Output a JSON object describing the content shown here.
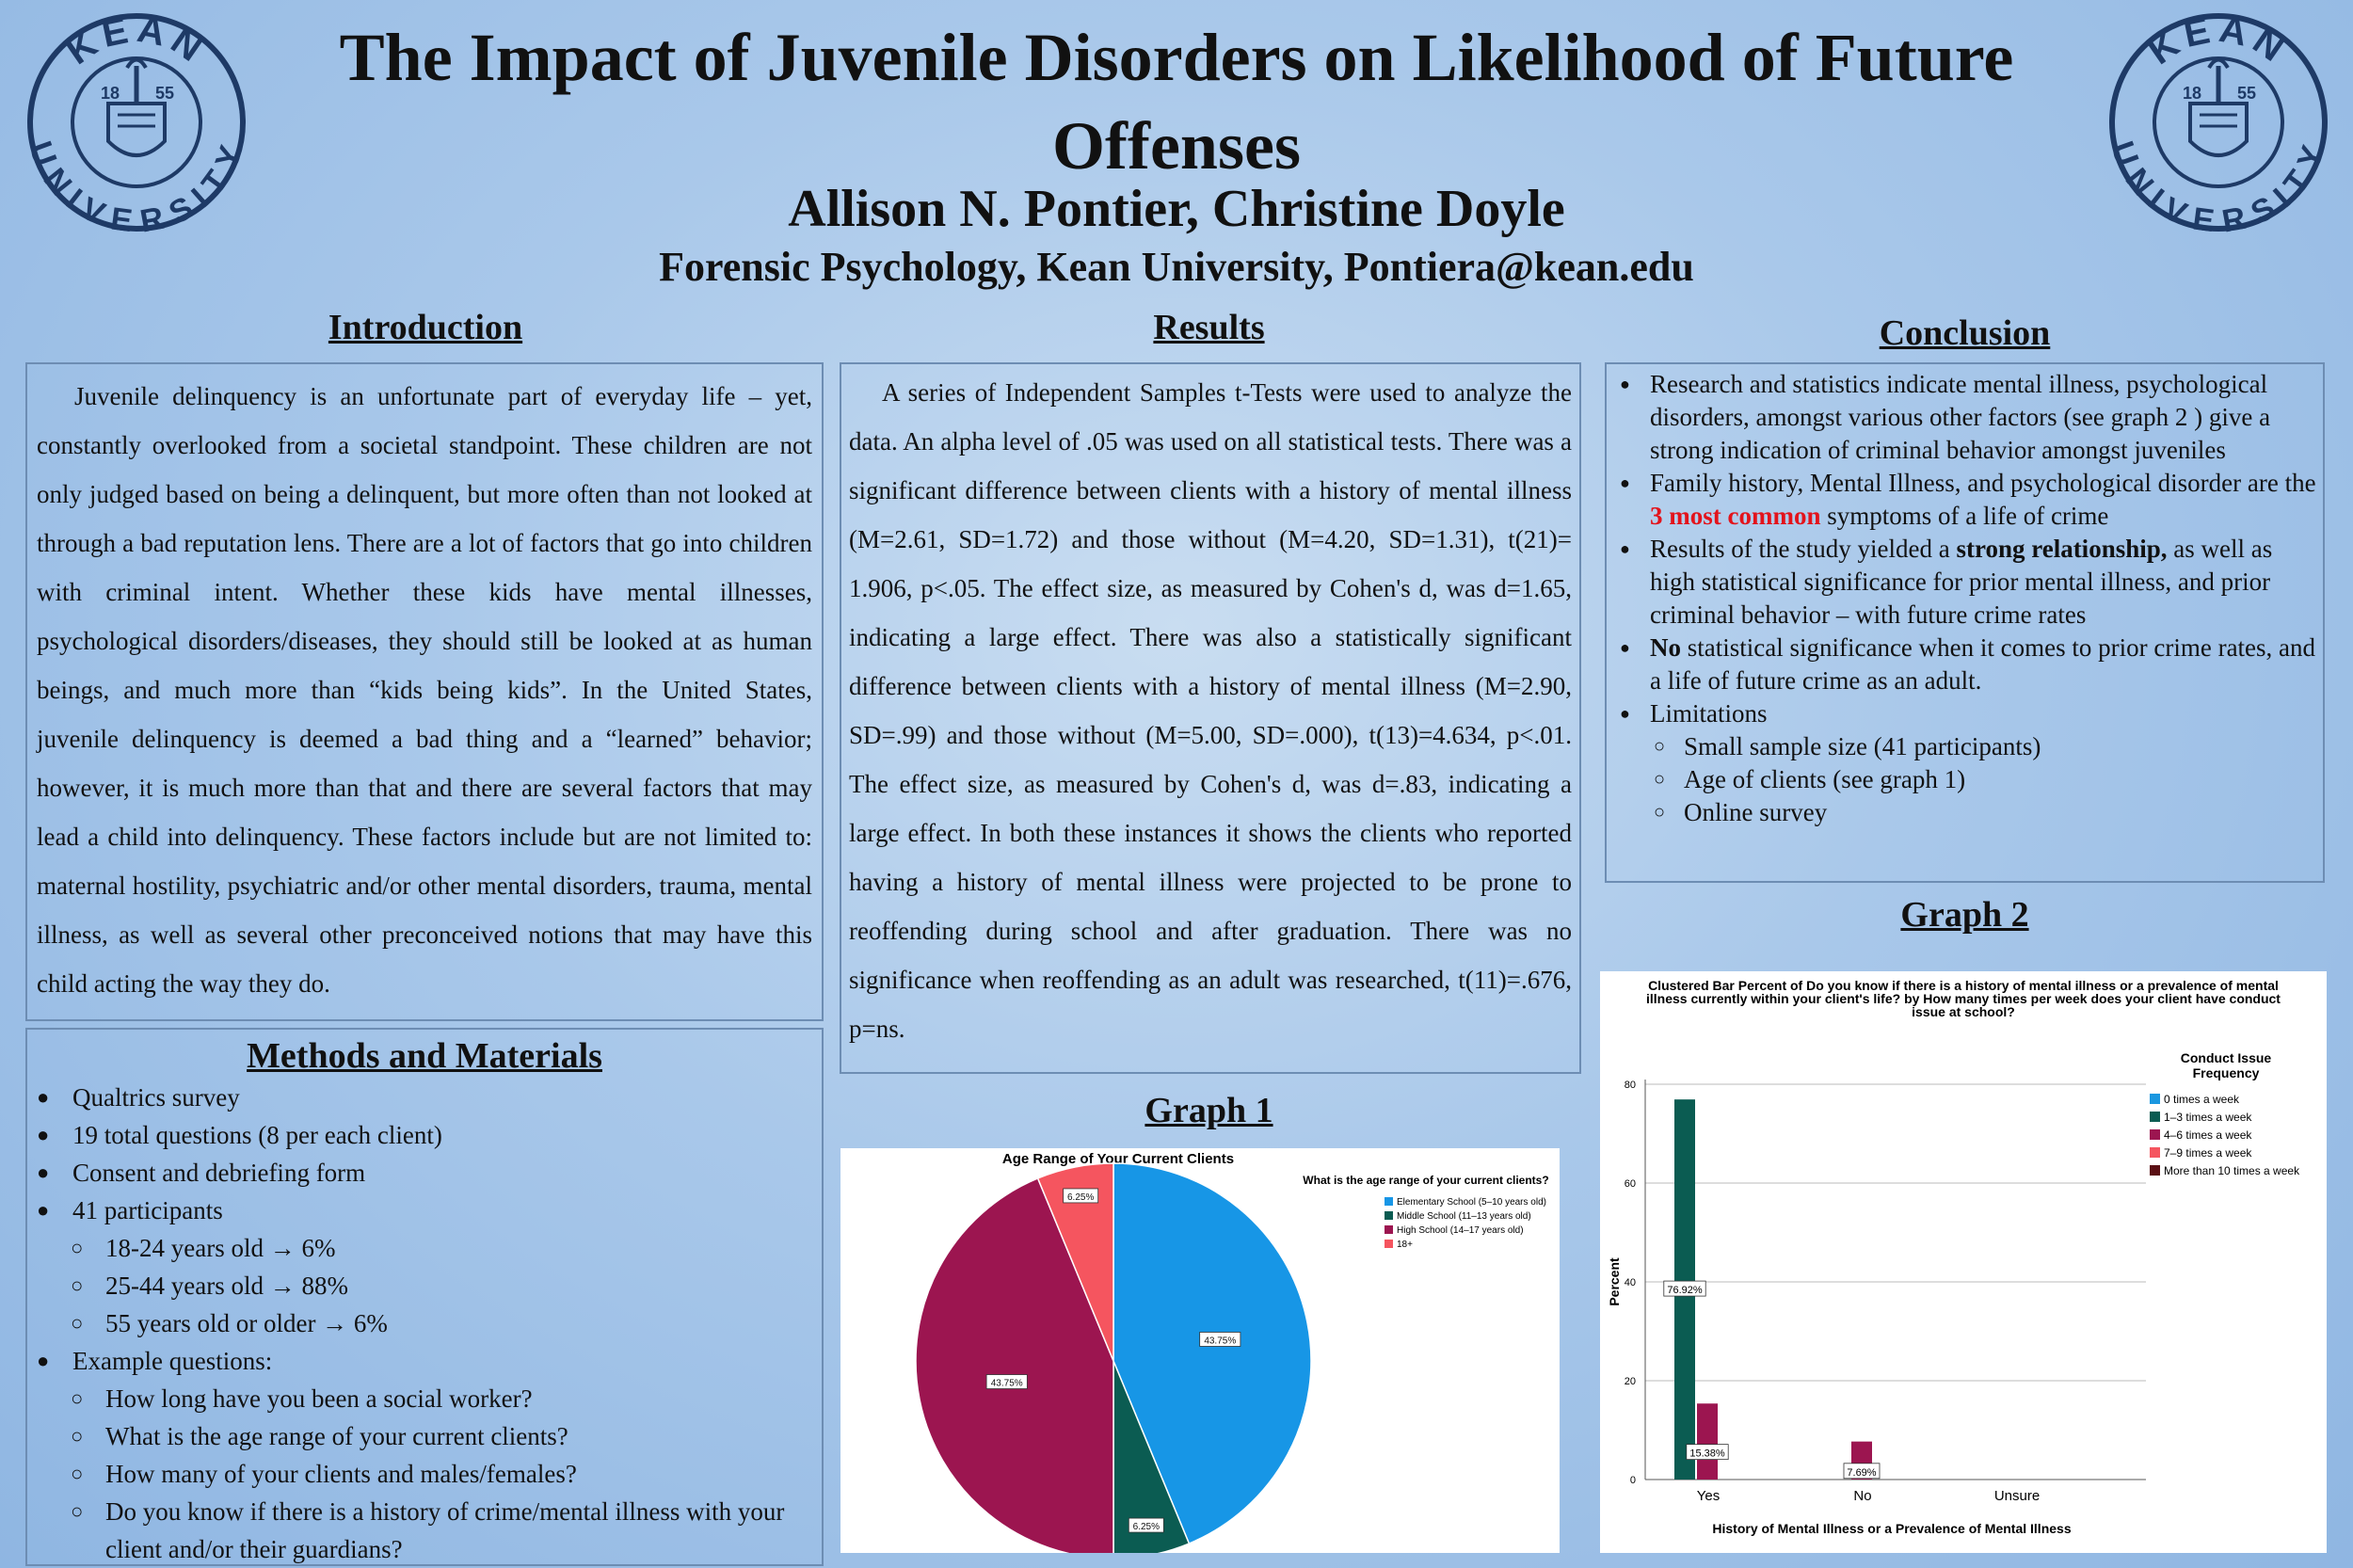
{
  "logo": {
    "top_text": "KEAN",
    "bottom_text": "UNIVERSITY",
    "year_left": "18",
    "year_right": "55",
    "icon": "kean-university-seal-icon",
    "color": "#1e3a66"
  },
  "header": {
    "title_line1": "The Impact of Juvenile Disorders on Likelihood of Future",
    "title_line2": "Offenses",
    "authors": "Allison N. Pontier, Christine Doyle",
    "affiliation": "Forensic Psychology, Kean University, Pontiera@kean.edu"
  },
  "introduction": {
    "heading": "Introduction",
    "text": "Juvenile delinquency is an unfortunate part of everyday life – yet, constantly overlooked from a societal standpoint. These children are not only judged based on being a delinquent, but more often than not looked at through a bad reputation lens. There are a lot of factors that go into children with criminal intent. Whether these kids have mental illnesses, psychological disorders/diseases, they should still be looked at as human beings, and much more than “kids being kids”. In the United States, juvenile delinquency is deemed a bad thing and a “learned” behavior; however, it is much more than that and there are several factors that may lead a child into delinquency. These factors include but are not limited to: maternal hostility, psychiatric and/or other mental disorders, trauma, mental illness, as well as several other preconceived notions that may have this child acting the way they do."
  },
  "methods": {
    "heading": "Methods and Materials",
    "items": [
      {
        "level": 1,
        "text": "Qualtrics survey"
      },
      {
        "level": 1,
        "text": "19 total questions (8 per each client)"
      },
      {
        "level": 1,
        "text": "Consent and debriefing form"
      },
      {
        "level": 1,
        "text": "41 participants"
      },
      {
        "level": 2,
        "text": "18-24 years old → 6%"
      },
      {
        "level": 2,
        "text": "25-44 years old → 88%"
      },
      {
        "level": 2,
        "text": "55 years old or older → 6%"
      },
      {
        "level": 1,
        "text": "Example questions:"
      },
      {
        "level": 2,
        "text": "How long have you been a social worker?"
      },
      {
        "level": 2,
        "text": "What is the age range of your current clients?"
      },
      {
        "level": 2,
        "text": "How many of your clients and males/females?"
      },
      {
        "level": 2,
        "text": "Do you know if there is a history of crime/mental illness with your client and/or their guardians?"
      }
    ]
  },
  "results": {
    "heading": "Results",
    "text": "A series of Independent Samples t-Tests were used to analyze the data. An alpha level of .05 was used on all statistical tests. There was a significant difference between clients with a history of mental illness (M=2.61, SD=1.72) and those without (M=4.20, SD=1.31), t(21)= 1.906, p<.05. The effect size, as measured by Cohen's d, was d=1.65, indicating a large effect. There was also a statistically significant difference between clients with a history of mental illness (M=2.90, SD=.99) and those without (M=5.00, SD=.000), t(13)=4.634, p<.01. The effect size, as measured by Cohen's d, was d=.83, indicating a large effect. In both these instances it shows the clients who reported having a history of mental illness were projected to be prone to reoffending during school and after graduation. There was no significance when reoffending as an adult was researched, t(11)=.676, p=ns."
  },
  "conclusion": {
    "heading": "Conclusion",
    "b1": "Research and statistics indicate mental illness, psychological disorders, amongst various other factors (see graph 2  ) give a strong indication of criminal behavior amongst juveniles",
    "b2_pre": "Family history, Mental Illness, and psychological disorder are the ",
    "b2_red": "3 most common",
    "b2_post": " symptoms of a life of crime",
    "b3_pre": "Results of the study yielded a ",
    "b3_bold": "strong relationship,",
    "b3_post": " as well as high statistical significance for prior mental illness, and prior criminal behavior – with future crime rates",
    "b4_bold": "No",
    "b4_post": " statistical significance when it comes to prior crime rates, and a life of future crime as an adult.",
    "b5": "Limitations",
    "sub": [
      "Small sample size (41 participants)",
      "Age of clients (see graph 1)",
      "Online survey"
    ]
  },
  "graph1": {
    "heading": "Graph 1",
    "chart_data": {
      "type": "pie",
      "title": "Age Range of Your Current Clients",
      "legend_title": "What is the age range of your current clients?",
      "legend_position": "right",
      "slices": [
        {
          "label": "Elementary School (5–10 years old)",
          "value": 43.75,
          "display": "43.75%",
          "color": "#1796e6"
        },
        {
          "label": "Middle School (11–13 years old)",
          "value": 6.25,
          "display": "6.25%",
          "color": "#0b5c52"
        },
        {
          "label": "High School (14–17 years old)",
          "value": 43.75,
          "display": "43.75%",
          "color": "#9c1550"
        },
        {
          "label": "18+",
          "value": 6.25,
          "display": "6.25%",
          "color": "#f5555f"
        }
      ]
    }
  },
  "graph2": {
    "heading": "Graph 2",
    "chart_data": {
      "type": "bar",
      "title_lines": [
        "Clustered Bar Percent of Do you know if there is a history of mental illness or a prevalence of mental",
        "illness currently within your client's life? by How many times per week does your client have conduct",
        "issue at school?"
      ],
      "xlabel": "History of Mental Illness or a Prevalence of Mental Illness",
      "ylabel": "Percent",
      "ylim": [
        0,
        80
      ],
      "yticks": [
        0,
        20,
        40,
        60,
        80
      ],
      "categories": [
        "Yes",
        "No",
        "Unsure"
      ],
      "legend_title_lines": [
        "Conduct Issue",
        "Frequency"
      ],
      "legend_position": "top-right",
      "series": [
        {
          "name": "0 times a week",
          "color": "#1a97e0",
          "values": [
            0,
            0,
            0
          ]
        },
        {
          "name": "1–3 times a week",
          "color": "#0b5c52",
          "values": [
            76.92,
            0,
            0
          ]
        },
        {
          "name": "4–6 times a week",
          "color": "#9c1550",
          "values": [
            15.38,
            7.69,
            0
          ]
        },
        {
          "name": "7–9 times a week",
          "color": "#f5555f",
          "values": [
            0,
            0,
            0
          ]
        },
        {
          "name": "More than 10 times a week",
          "color": "#5a0f14",
          "values": [
            0,
            0,
            0
          ]
        }
      ],
      "data_labels": [
        {
          "category": "Yes",
          "series": "1–3 times a week",
          "text": "76.92%"
        },
        {
          "category": "Yes",
          "series": "4–6 times a week",
          "text": "15.38%"
        },
        {
          "category": "No",
          "series": "4–6 times a week",
          "text": "7.69%"
        }
      ]
    }
  }
}
